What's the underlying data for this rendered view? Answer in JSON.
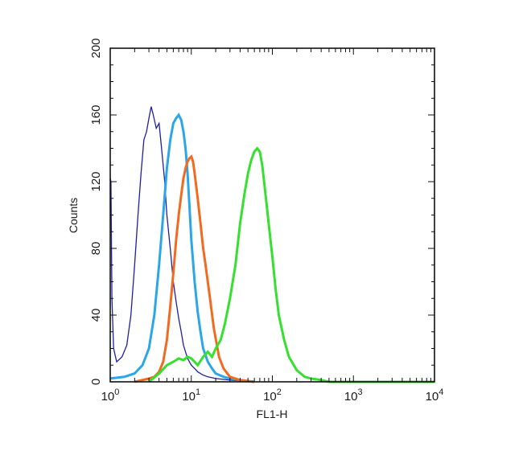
{
  "chart_data": {
    "type": "line",
    "xlabel": "FL1-H",
    "ylabel": "Counts",
    "x_scale": "log",
    "xlim": [
      1,
      10000
    ],
    "ylim": [
      0,
      200
    ],
    "x_ticks": [
      {
        "value": 1,
        "base": "10",
        "exp": "0"
      },
      {
        "value": 10,
        "base": "10",
        "exp": "1"
      },
      {
        "value": 100,
        "base": "10",
        "exp": "2"
      },
      {
        "value": 1000,
        "base": "10",
        "exp": "3"
      },
      {
        "value": 10000,
        "base": "10",
        "exp": "4"
      }
    ],
    "y_ticks": [
      "0",
      "40",
      "80",
      "120",
      "160",
      "200"
    ],
    "y_tick_values": [
      0,
      40,
      80,
      120,
      160,
      200
    ],
    "grid": false,
    "series": [
      {
        "color": "#1f1fa8",
        "stroke_width": 1.3,
        "x": [
          1.0,
          1.02,
          1.05,
          1.1,
          1.2,
          1.4,
          1.6,
          1.8,
          2.0,
          2.2,
          2.4,
          2.6,
          2.8,
          3.0,
          3.2,
          3.4,
          3.7,
          4.0,
          4.3,
          4.7,
          5.0,
          5.5,
          6.0,
          6.5,
          7.0,
          7.5,
          8.0,
          9.0,
          10.0,
          11.0,
          12.0,
          14.0,
          16.0,
          20.0,
          30.0,
          60.0
        ],
        "y": [
          122,
          120,
          50,
          20,
          12,
          15,
          22,
          40,
          70,
          100,
          125,
          145,
          150,
          158,
          165,
          160,
          152,
          155,
          140,
          120,
          100,
          80,
          60,
          48,
          38,
          30,
          22,
          14,
          10,
          8,
          6,
          4,
          3,
          2,
          1,
          0
        ]
      },
      {
        "color": "#2aa7e8",
        "stroke_width": 3,
        "x": [
          1.0,
          1.5,
          2.0,
          2.5,
          3.0,
          3.5,
          4.0,
          4.5,
          5.0,
          5.5,
          6.0,
          6.5,
          7.0,
          7.5,
          8.0,
          8.5,
          9.0,
          9.5,
          10.0,
          11.0,
          12.0,
          13.0,
          14.0,
          16.0,
          18.0,
          20.0,
          25.0,
          30.0,
          40.0,
          60.0
        ],
        "y": [
          2,
          3,
          5,
          10,
          20,
          40,
          70,
          100,
          128,
          145,
          155,
          158,
          160,
          157,
          150,
          140,
          125,
          105,
          85,
          60,
          42,
          30,
          20,
          12,
          8,
          5,
          3,
          2,
          1,
          0
        ]
      },
      {
        "color": "#f26a1f",
        "stroke_width": 3,
        "x": [
          2.0,
          3.0,
          3.5,
          4.0,
          4.5,
          5.0,
          5.5,
          6.0,
          6.5,
          7.0,
          7.5,
          8.0,
          8.5,
          9.0,
          9.5,
          10.0,
          10.5,
          11.0,
          12.0,
          13.0,
          14.0,
          15.0,
          17.0,
          19.0,
          22.0,
          25.0,
          30.0,
          40.0,
          60.0
        ],
        "y": [
          0,
          2,
          3,
          6,
          12,
          25,
          45,
          65,
          85,
          100,
          112,
          122,
          128,
          132,
          134,
          135,
          132,
          125,
          110,
          95,
          80,
          70,
          50,
          32,
          15,
          8,
          3,
          1,
          0
        ]
      },
      {
        "color": "#35e02f",
        "stroke_width": 3,
        "x": [
          3.0,
          4.0,
          5.0,
          6.0,
          7.0,
          8.0,
          9.0,
          10.0,
          11.0,
          12.0,
          14.0,
          16.0,
          18.0,
          20.0,
          23.0,
          26.0,
          30.0,
          35.0,
          40.0,
          45.0,
          50.0,
          55.0,
          60.0,
          65.0,
          70.0,
          75.0,
          80.0,
          90.0,
          100.0,
          110.0,
          120.0,
          140.0,
          160.0,
          200.0,
          250.0,
          300.0,
          400.0,
          500.0,
          1000.0,
          10000.0
        ],
        "y": [
          0,
          5,
          10,
          12,
          14,
          13,
          15,
          14,
          12,
          10,
          15,
          18,
          15,
          20,
          25,
          35,
          50,
          70,
          95,
          112,
          125,
          133,
          138,
          140,
          138,
          130,
          118,
          95,
          75,
          55,
          40,
          25,
          15,
          7,
          3,
          2,
          1,
          0,
          0,
          0
        ]
      }
    ]
  }
}
